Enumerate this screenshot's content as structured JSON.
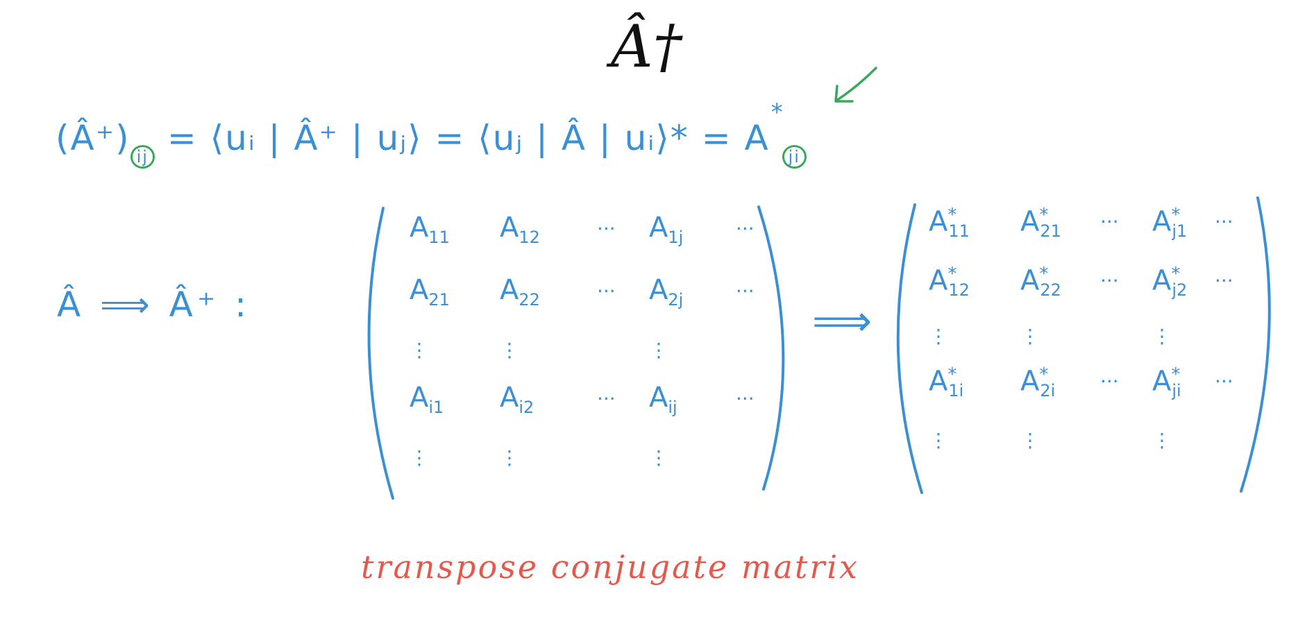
{
  "title": "Â†",
  "equation": {
    "lhs": "(Â⁺)",
    "lhs_sub": "ij",
    "mid1": "= ⟨uᵢ | Â⁺ | uⱼ⟩ = ⟨uⱼ | Â | uᵢ⟩* = A",
    "rhs_sub": "ji",
    "rhs_sup": "*"
  },
  "mapping_label": "Â ⟹ Â⁺ :",
  "arrow_between": "⟹",
  "matrix_A": {
    "rows": [
      [
        {
          "b": "A",
          "s": "11"
        },
        {
          "b": "A",
          "s": "12"
        },
        {
          "b": "···"
        },
        {
          "b": "A",
          "s": "1j"
        },
        {
          "b": "···"
        }
      ],
      [
        {
          "b": "A",
          "s": "21"
        },
        {
          "b": "A",
          "s": "22"
        },
        {
          "b": "···"
        },
        {
          "b": "A",
          "s": "2j"
        },
        {
          "b": "···"
        }
      ],
      [
        {
          "b": "⋮"
        },
        {
          "b": "⋮"
        },
        {
          "b": ""
        },
        {
          "b": "⋮"
        },
        {
          "b": ""
        }
      ],
      [
        {
          "b": "A",
          "s": "i1"
        },
        {
          "b": "A",
          "s": "i2"
        },
        {
          "b": "···"
        },
        {
          "b": "A",
          "s": "ij"
        },
        {
          "b": "···"
        }
      ],
      [
        {
          "b": "⋮"
        },
        {
          "b": "⋮"
        },
        {
          "b": ""
        },
        {
          "b": "⋮"
        },
        {
          "b": ""
        }
      ]
    ]
  },
  "matrix_Adag": {
    "rows": [
      [
        {
          "b": "A",
          "s": "11",
          "p": "*"
        },
        {
          "b": "A",
          "s": "21",
          "p": "*"
        },
        {
          "b": "···"
        },
        {
          "b": "A",
          "s": "j1",
          "p": "*"
        },
        {
          "b": "···"
        }
      ],
      [
        {
          "b": "A",
          "s": "12",
          "p": "*"
        },
        {
          "b": "A",
          "s": "22",
          "p": "*"
        },
        {
          "b": "···"
        },
        {
          "b": "A",
          "s": "j2",
          "p": "*"
        },
        {
          "b": "···"
        }
      ],
      [
        {
          "b": "⋮"
        },
        {
          "b": "⋮"
        },
        {
          "b": ""
        },
        {
          "b": "⋮"
        },
        {
          "b": ""
        }
      ],
      [
        {
          "b": "A",
          "s": "1i",
          "p": "*"
        },
        {
          "b": "A",
          "s": "2i",
          "p": "*"
        },
        {
          "b": "···"
        },
        {
          "b": "A",
          "s": "ji",
          "p": "*"
        },
        {
          "b": "···"
        }
      ],
      [
        {
          "b": "⋮"
        },
        {
          "b": "⋮"
        },
        {
          "b": ""
        },
        {
          "b": "⋮"
        },
        {
          "b": ""
        }
      ]
    ]
  },
  "caption": "transpose conjugate matrix",
  "colors": {
    "ink_blue": "#3b8fd4",
    "annotation_green": "#3aa85a",
    "caption_red": "#e6584b"
  }
}
